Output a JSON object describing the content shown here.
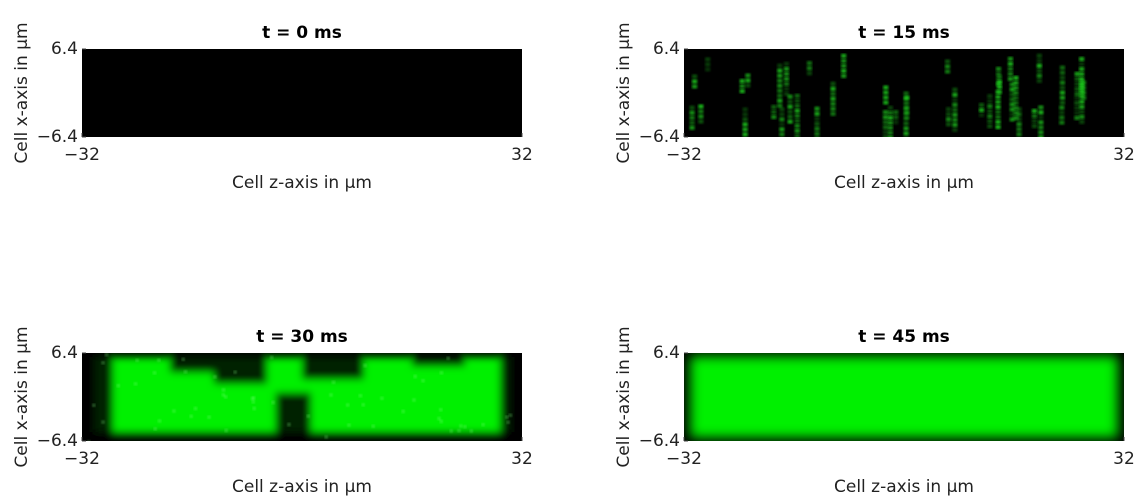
{
  "chart_data": [
    {
      "type": "heatmap",
      "title": "t = 0 ms",
      "xlabel": "Cell z-axis in μm",
      "ylabel": "Cell x-axis in μm",
      "xlim": [
        -32,
        32
      ],
      "ylim": [
        -6.4,
        6.4
      ],
      "xticks": [
        {
          "value": -32,
          "label": "−32"
        },
        32
      ],
      "yticks": [
        {
          "value": -6.4,
          "label": "−6.4"
        },
        6.4
      ]
    },
    {
      "type": "heatmap",
      "title": "t = 15 ms",
      "xlabel": "Cell z-axis in μm",
      "ylabel": "Cell x-axis in μm",
      "xlim": [
        -32,
        32
      ],
      "ylim": [
        -6.4,
        6.4
      ],
      "xticks": [
        {
          "value": -32,
          "label": "−32"
        },
        32
      ],
      "yticks": [
        {
          "value": -6.4,
          "label": "−6.4"
        },
        6.4
      ]
    },
    {
      "type": "heatmap",
      "title": "t = 30 ms",
      "xlabel": "Cell z-axis in μm",
      "ylabel": "Cell x-axis in μm",
      "xlim": [
        -32,
        32
      ],
      "ylim": [
        -6.4,
        6.4
      ],
      "xticks": [
        {
          "value": -32,
          "label": "−32"
        },
        32
      ],
      "yticks": [
        {
          "value": -6.4,
          "label": "−6.4"
        },
        6.4
      ]
    },
    {
      "type": "heatmap",
      "title": "t = 45 ms",
      "xlabel": "Cell z-axis in μm",
      "ylabel": "Cell x-axis in μm",
      "xlim": [
        -32,
        32
      ],
      "ylim": [
        -6.4,
        6.4
      ],
      "xticks": [
        {
          "value": -32,
          "label": "−32"
        },
        32
      ],
      "yticks": [
        {
          "value": -6.4,
          "label": "−6.4"
        },
        6.4
      ]
    }
  ]
}
